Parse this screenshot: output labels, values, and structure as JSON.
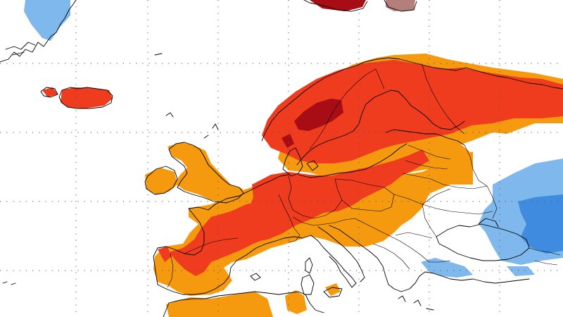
{
  "map": {
    "type": "gridded-anomaly-map",
    "region": "Europe",
    "classes": [
      {
        "id": "strong-warm",
        "color": "#a80d15"
      },
      {
        "id": "warm",
        "color": "#f03c1e"
      },
      {
        "id": "mild-warm",
        "color": "#f59a0f"
      },
      {
        "id": "neutral",
        "color": "#ffffff"
      },
      {
        "id": "mild-cold",
        "color": "#7fb8ec"
      },
      {
        "id": "cold",
        "color": "#3f8be0"
      },
      {
        "id": "brown",
        "color": "#b47f7a"
      }
    ],
    "gridlines": true
  }
}
